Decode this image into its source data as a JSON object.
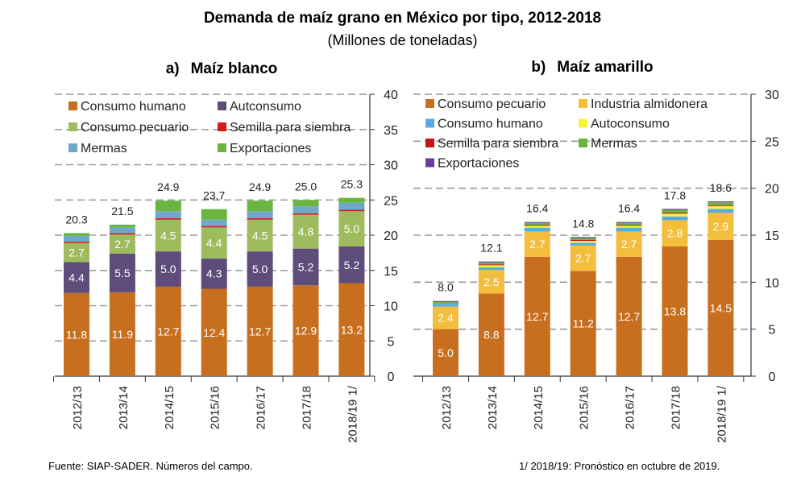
{
  "title": "Demanda de maíz grano en México por tipo, 2012-2018",
  "subtitle": "(Millones de toneladas)",
  "source": "Fuente: SIAP-SADER. Números del campo.",
  "note": "1/ 2018/19: Pronóstico en octubre de 2019.",
  "chart_data": [
    {
      "type": "bar",
      "stacked": true,
      "panel_letter": "a)",
      "title": "Maíz blanco",
      "categories": [
        "2012/13",
        "2013/14",
        "2014/15",
        "2015/16",
        "2016/17",
        "2017/18",
        "2018/19 1/"
      ],
      "ylim": [
        0,
        40
      ],
      "yticks": [
        0,
        5,
        10,
        15,
        20,
        25,
        30,
        35,
        40
      ],
      "y_axis_side": "right",
      "grid": "dashed horizontal",
      "legend_placement": "top-left",
      "legend_columns": 2,
      "totals": [
        "20.3",
        "21.5",
        "24.9",
        "23.7",
        "24.9",
        "25.0",
        "25.3"
      ],
      "series": [
        {
          "name": "Consumo humano",
          "color": "#c86f1f",
          "values": [
            11.8,
            11.9,
            12.7,
            12.4,
            12.7,
            12.9,
            13.2
          ],
          "show_labels": true
        },
        {
          "name": "Autconsumo",
          "color": "#5e4d7a",
          "values": [
            4.4,
            5.5,
            5.0,
            4.3,
            5.0,
            5.2,
            5.2
          ],
          "show_labels": true
        },
        {
          "name": "Consumo pecuario",
          "color": "#9ebb5e",
          "values": [
            2.7,
            2.7,
            4.5,
            4.4,
            4.5,
            4.8,
            5.0
          ],
          "show_labels": true
        },
        {
          "name": "Semilla para siembra",
          "color": "#d11a1a",
          "values": [
            0.2,
            0.2,
            0.2,
            0.2,
            0.2,
            0.2,
            0.2
          ],
          "show_labels": false
        },
        {
          "name": "Mermas",
          "color": "#6fa8c8",
          "values": [
            0.8,
            0.8,
            1.0,
            0.9,
            1.0,
            1.0,
            1.0
          ],
          "show_labels": false
        },
        {
          "name": "Exportaciones",
          "color": "#6ab540",
          "values": [
            0.4,
            0.4,
            1.5,
            1.5,
            1.5,
            0.9,
            0.7
          ],
          "show_labels": false
        }
      ]
    },
    {
      "type": "bar",
      "stacked": true,
      "panel_letter": "b)",
      "title": "Maíz amarillo",
      "categories": [
        "2012/13",
        "2013/14",
        "2014/15",
        "2015/16",
        "2016/17",
        "2017/18",
        "2018/19 1/"
      ],
      "ylim": [
        0,
        30
      ],
      "yticks": [
        0,
        5,
        10,
        15,
        20,
        25,
        30
      ],
      "y_axis_side": "right",
      "grid": "dashed horizontal",
      "legend_placement": "top-left",
      "legend_columns": 2,
      "totals": [
        "8.0",
        "12.1",
        "16.4",
        "14.8",
        "16.4",
        "17.8",
        "18.6"
      ],
      "series": [
        {
          "name": "Consumo pecuario",
          "color": "#c86f1f",
          "values": [
            5.0,
            8.8,
            12.7,
            11.2,
            12.7,
            13.8,
            14.5
          ],
          "show_labels": true
        },
        {
          "name": "Industria almidonera",
          "color": "#f2be3b",
          "values": [
            2.4,
            2.5,
            2.7,
            2.7,
            2.7,
            2.8,
            2.9
          ],
          "show_labels": true
        },
        {
          "name": "Consumo humano",
          "color": "#5aa9e0",
          "values": [
            0.3,
            0.3,
            0.4,
            0.3,
            0.4,
            0.4,
            0.4
          ],
          "show_labels": false
        },
        {
          "name": "Autoconsumo",
          "color": "#f5f53c",
          "values": [
            0.0,
            0.2,
            0.2,
            0.2,
            0.2,
            0.3,
            0.3
          ],
          "show_labels": false
        },
        {
          "name": "Semilla para siembra",
          "color": "#c2141a",
          "values": [
            0.0,
            0.1,
            0.1,
            0.1,
            0.1,
            0.1,
            0.1
          ],
          "show_labels": false
        },
        {
          "name": "Mermas",
          "color": "#6ab540",
          "values": [
            0.2,
            0.2,
            0.2,
            0.2,
            0.2,
            0.3,
            0.3
          ],
          "show_labels": false
        },
        {
          "name": "Exportaciones",
          "color": "#6a3d9a",
          "values": [
            0.1,
            0.1,
            0.1,
            0.1,
            0.1,
            0.1,
            0.1
          ],
          "show_labels": false
        }
      ]
    }
  ]
}
